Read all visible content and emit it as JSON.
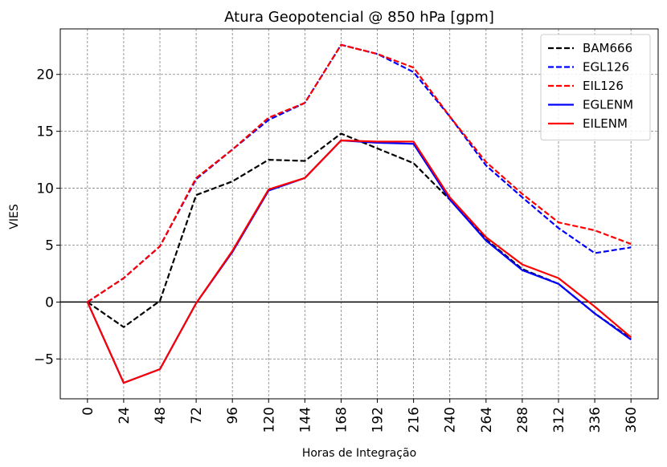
{
  "chart_data": {
    "type": "line",
    "title": "Atura Geopotencial @ 850 hPa [gpm]",
    "xlabel": "Horas de Integração",
    "ylabel": "VIES",
    "x": [
      0,
      24,
      48,
      72,
      96,
      120,
      144,
      168,
      192,
      216,
      240,
      264,
      288,
      312,
      336,
      360
    ],
    "x_tick_labels": [
      "0",
      "24",
      "48",
      "72",
      "96",
      "120",
      "144",
      "168",
      "192",
      "216",
      "240",
      "264",
      "288",
      "312",
      "336",
      "360"
    ],
    "ylim": [
      -8.5,
      24
    ],
    "y_ticks": [
      -5,
      0,
      5,
      10,
      15,
      20
    ],
    "y_tick_labels": [
      "−5",
      "0",
      "5",
      "10",
      "15",
      "20"
    ],
    "grid": true,
    "zero_line": true,
    "legend_position": "top-right",
    "series": [
      {
        "name": "BAM666",
        "color": "#000000",
        "dash": "dashed",
        "values": [
          0,
          -2.2,
          0.1,
          9.4,
          10.6,
          12.5,
          12.4,
          14.8,
          13.5,
          12.2,
          9.0,
          5.5,
          2.9,
          1.6,
          -1.0,
          -3.2
        ]
      },
      {
        "name": "EGL126",
        "color": "#0000ff",
        "dash": "dashed",
        "values": [
          0,
          2.1,
          4.9,
          10.8,
          13.4,
          16.0,
          17.5,
          22.6,
          21.8,
          20.2,
          16.3,
          12.0,
          9.2,
          6.5,
          4.3,
          4.8
        ]
      },
      {
        "name": "EIL126",
        "color": "#ff0000",
        "dash": "dashed",
        "values": [
          0,
          2.1,
          4.9,
          10.9,
          13.4,
          16.2,
          17.5,
          22.6,
          21.8,
          20.6,
          16.3,
          12.3,
          9.5,
          7.0,
          6.3,
          5.1
        ]
      },
      {
        "name": "EGLENM",
        "color": "#0000ff",
        "dash": "solid",
        "values": [
          0,
          -7.1,
          -5.9,
          -0.1,
          4.4,
          9.8,
          10.9,
          14.2,
          14.0,
          13.9,
          9.0,
          5.4,
          2.8,
          1.6,
          -1.0,
          -3.3
        ]
      },
      {
        "name": "EILENM",
        "color": "#ff0000",
        "dash": "solid",
        "values": [
          0,
          -7.1,
          -5.9,
          -0.1,
          4.5,
          9.9,
          10.9,
          14.2,
          14.1,
          14.1,
          9.2,
          5.7,
          3.3,
          2.1,
          -0.4,
          -3.1
        ]
      }
    ]
  }
}
